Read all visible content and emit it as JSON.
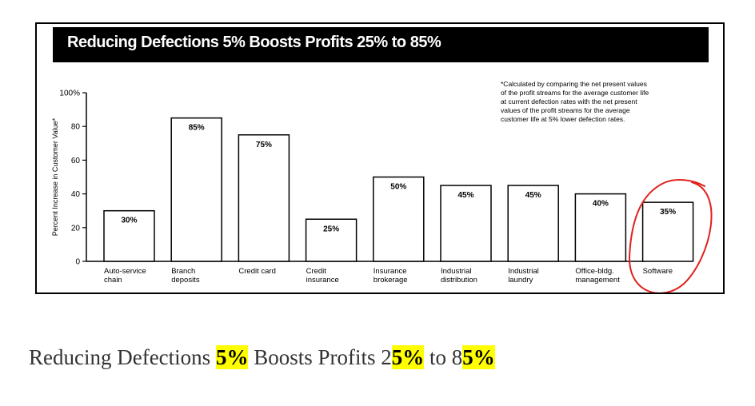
{
  "chart_data": {
    "type": "bar",
    "title": "Reducing Defections 5% Boosts Profits 25% to 85%",
    "ylabel": "Percent Increase in Customer Value*",
    "ylim": [
      0,
      100
    ],
    "yticks": [
      "0",
      "20",
      "40",
      "60",
      "80",
      "100%"
    ],
    "categories": [
      [
        "Auto-service",
        "chain"
      ],
      [
        "Branch",
        "deposits"
      ],
      [
        "Credit card"
      ],
      [
        "Credit",
        "insurance"
      ],
      [
        "Insurance",
        "brokerage"
      ],
      [
        "Industrial",
        "distribution"
      ],
      [
        "Industrial",
        "laundry"
      ],
      [
        "Office-bldg.",
        "management"
      ],
      [
        "Software"
      ]
    ],
    "values": [
      30,
      85,
      75,
      25,
      50,
      45,
      45,
      40,
      35
    ],
    "value_labels": [
      "30%",
      "85%",
      "75%",
      "25%",
      "50%",
      "45%",
      "45%",
      "40%",
      "35%"
    ],
    "footnote": [
      "*Calculated by comparing the net present values",
      "of the profit streams for the average customer life",
      "at current defection rates with the net present",
      "values of the profit streams for the average",
      "customer life at 5% lower defection rates."
    ],
    "annotation": {
      "type": "hand-drawn circle",
      "target": "Software",
      "color": "#e0201c"
    }
  },
  "caption": {
    "parts": [
      {
        "text": "Reducing Defections ",
        "highlight": false
      },
      {
        "text": "5%",
        "highlight": true
      },
      {
        "text": " Boosts Profits 2",
        "highlight": false
      },
      {
        "text": "5%",
        "highlight": true
      },
      {
        "text": " to 8",
        "highlight": false
      },
      {
        "text": "5%",
        "highlight": true
      }
    ],
    "highlight_color": "#ffff00"
  }
}
